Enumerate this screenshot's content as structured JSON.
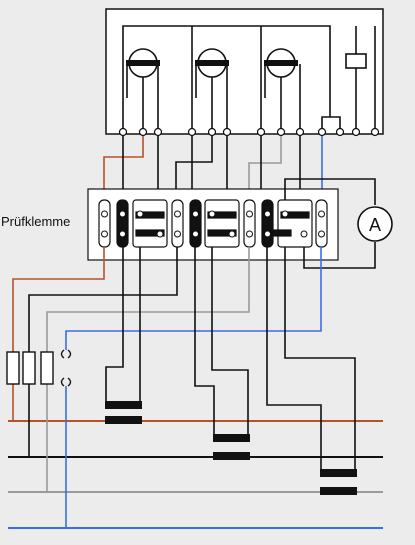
{
  "diagram": {
    "label_pruefklemme": "Prüfklemme",
    "ammeter_symbol": "A",
    "colors": {
      "background": "#ececec",
      "box": "#ffffff",
      "line_black": "#111111",
      "phase_brown": "#b4532a",
      "phase_gray": "#9a9a9a",
      "neutral_blue": "#3a6ee8"
    },
    "icons": {
      "meter_element": "circle-with-bar",
      "fuse": "rectangle-fuse",
      "current_transformer": "double-bar-ct",
      "ammeter": "circled-letter"
    }
  }
}
